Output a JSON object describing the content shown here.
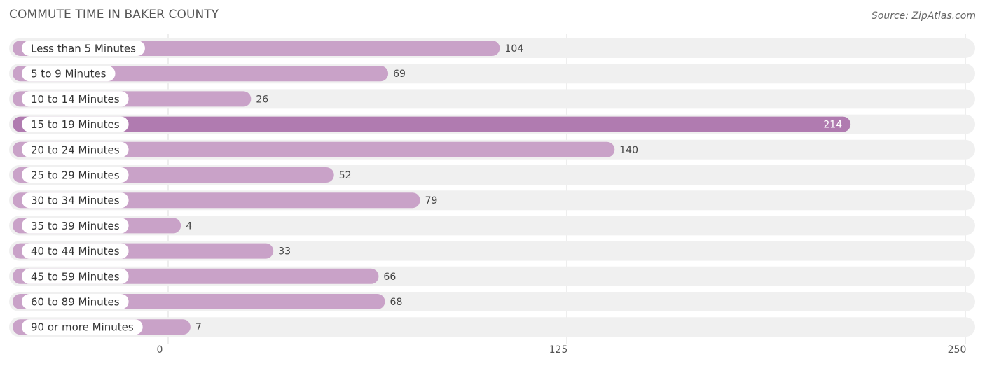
{
  "title": "COMMUTE TIME IN BAKER COUNTY",
  "source": "Source: ZipAtlas.com",
  "colors": {
    "bar": "#c9a2c8",
    "bar_highlight": "#b07bb0",
    "track": "#f0f0f0",
    "grid": "#dddddd",
    "label_text": "#333333",
    "value_text": "#444444",
    "highlight_value_text": "#ffffff"
  },
  "chart_data": {
    "type": "bar",
    "orientation": "horizontal",
    "title": "COMMUTE TIME IN BAKER COUNTY",
    "xlabel": "",
    "ylabel": "",
    "xlim": [
      0,
      250
    ],
    "ticks": [
      0,
      125,
      250
    ],
    "tick_labels": [
      "0",
      "125",
      "250"
    ],
    "grid": true,
    "categories": [
      "Less than 5 Minutes",
      "5 to 9 Minutes",
      "10 to 14 Minutes",
      "15 to 19 Minutes",
      "20 to 24 Minutes",
      "25 to 29 Minutes",
      "30 to 34 Minutes",
      "35 to 39 Minutes",
      "40 to 44 Minutes",
      "45 to 59 Minutes",
      "60 to 89 Minutes",
      "90 or more Minutes"
    ],
    "values": [
      104,
      69,
      26,
      214,
      140,
      52,
      79,
      4,
      33,
      66,
      68,
      7
    ],
    "highlight_index": 3
  }
}
